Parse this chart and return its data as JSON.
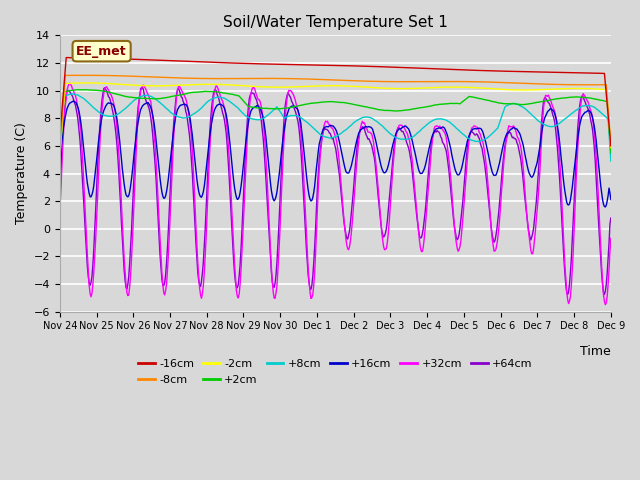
{
  "title": "Soil/Water Temperature Set 1",
  "xlabel": "Time",
  "ylabel": "Temperature (C)",
  "ylim": [
    -6,
    14
  ],
  "yticks": [
    -6,
    -4,
    -2,
    0,
    2,
    4,
    6,
    8,
    10,
    12,
    14
  ],
  "bg_color": "#d8d8d8",
  "plot_bg_color": "#d8d8d8",
  "annotation_text": "EE_met",
  "annotation_box_color": "#ffffcc",
  "annotation_box_edge": "#8b6914",
  "series_colors": {
    "-16cm": "#cc0000",
    "-8cm": "#ff8800",
    "-2cm": "#ffff00",
    "+2cm": "#00cc00",
    "+8cm": "#00cccc",
    "+16cm": "#0000cc",
    "+32cm": "#ff00ff",
    "+64cm": "#8800cc"
  },
  "tick_labels": [
    "Nov 24",
    "Nov 25",
    "Nov 26",
    "Nov 27",
    "Nov 28",
    "Nov 29",
    "Nov 30",
    "Dec 1",
    "Dec 2",
    "Dec 3",
    "Dec 4",
    "Dec 5",
    "Dec 6",
    "Dec 7",
    "Dec 8",
    "Dec 9"
  ]
}
